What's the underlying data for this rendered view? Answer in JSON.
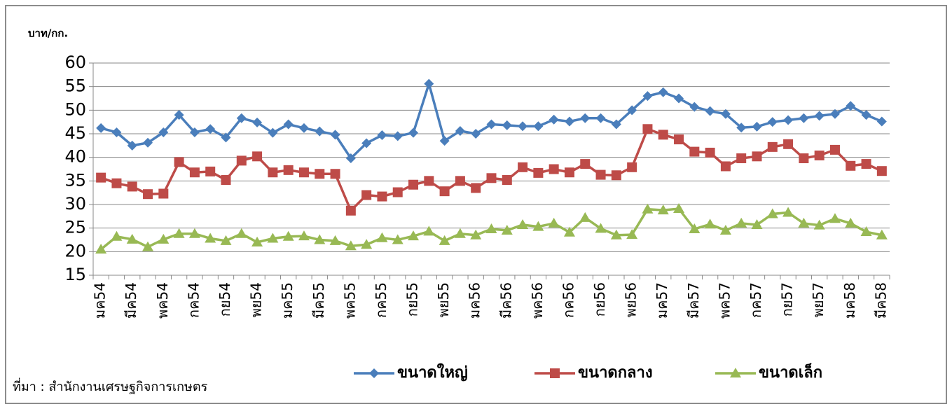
{
  "chart_data": {
    "type": "line",
    "y_axis_label": "บาท/กก.",
    "source": "ที่มา : สำนักงานเศรษฐกิจการเกษตร",
    "categories": [
      "มค54",
      null,
      "มีค54",
      null,
      "พค54",
      null,
      "กค54",
      null,
      "กย54",
      null,
      "พย54",
      null,
      "มค55",
      null,
      "มีค55",
      null,
      "พค55",
      null,
      "กค55",
      null,
      "กย55",
      null,
      "พย55",
      null,
      "มค56",
      null,
      "มีค56",
      null,
      "พค56",
      null,
      "กค56",
      null,
      "กย56",
      null,
      "พย56",
      null,
      "มค57",
      null,
      "มีค57",
      null,
      "พค57",
      null,
      "กค57",
      null,
      "กย57",
      null,
      "พย57",
      null,
      "มค58",
      null,
      "มีค58"
    ],
    "series": [
      {
        "name": "ขนาดใหญ่",
        "color": "#4a7ebb",
        "marker": "diamond",
        "values": [
          46.2,
          45.3,
          42.5,
          43.1,
          45.3,
          49,
          45.3,
          46,
          44.2,
          48.3,
          47.4,
          45.2,
          47,
          46.2,
          45.5,
          44.8,
          39.8,
          43,
          44.7,
          44.5,
          45.2,
          55.6,
          43.5,
          45.6,
          45,
          47,
          46.8,
          46.6,
          46.6,
          48,
          47.6,
          48.3,
          48.3,
          47,
          50,
          53,
          53.8,
          52.5,
          50.7,
          49.8,
          49.2,
          46.3,
          46.5,
          47.5,
          47.9,
          48.3,
          48.8,
          49.2,
          50.9,
          49,
          47.6
        ]
      },
      {
        "name": "ขนาดกลาง",
        "color": "#be4b48",
        "marker": "square",
        "values": [
          35.7,
          34.5,
          33.8,
          32.2,
          32.3,
          39,
          36.8,
          37,
          35.2,
          39.3,
          40.2,
          36.8,
          37.3,
          36.8,
          36.5,
          36.5,
          28.7,
          32,
          31.7,
          32.6,
          34.2,
          35,
          32.8,
          35,
          33.5,
          35.6,
          35.2,
          37.9,
          36.7,
          37.5,
          36.8,
          38.6,
          36.3,
          36.2,
          37.9,
          46,
          44.8,
          43.8,
          41.2,
          41,
          38.1,
          39.8,
          40.2,
          42.2,
          42.8,
          39.8,
          40.4,
          41.6,
          38.2,
          38.6,
          37.1
        ]
      },
      {
        "name": "ขนาดเล็ก",
        "color": "#98b954",
        "marker": "triangle",
        "values": [
          20.5,
          23.2,
          22.6,
          21,
          22.6,
          23.8,
          23.8,
          22.8,
          22.3,
          23.8,
          22,
          22.8,
          23.2,
          23.3,
          22.5,
          22.3,
          21.2,
          21.5,
          22.9,
          22.5,
          23.3,
          24.3,
          22.3,
          23.8,
          23.5,
          24.8,
          24.5,
          25.7,
          25.3,
          26,
          24.1,
          27.2,
          24.9,
          23.5,
          23.6,
          29,
          28.8,
          29.1,
          24.8,
          25.8,
          24.5,
          26,
          25.7,
          28,
          28.3,
          26,
          25.6,
          27,
          26,
          24.2,
          23.5
        ]
      }
    ],
    "ylim": [
      15,
      60
    ],
    "yticks": [
      15,
      20,
      25,
      30,
      35,
      40,
      45,
      50,
      55,
      60
    ],
    "grid": true,
    "legend": "bottom"
  }
}
